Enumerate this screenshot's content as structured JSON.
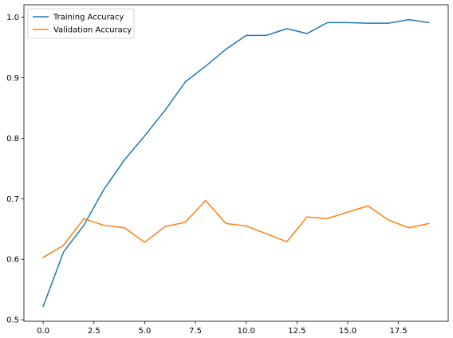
{
  "chart_data": {
    "type": "line",
    "title": "",
    "xlabel": "",
    "ylabel": "",
    "xlim": [
      -0.95,
      19.95
    ],
    "ylim": [
      0.4975,
      1.0205
    ],
    "xticks": [
      0.0,
      2.5,
      5.0,
      7.5,
      10.0,
      12.5,
      15.0,
      17.5
    ],
    "xtick_labels": [
      "0.0",
      "2.5",
      "5.0",
      "7.5",
      "10.0",
      "12.5",
      "15.0",
      "17.5"
    ],
    "yticks": [
      0.5,
      0.6,
      0.7,
      0.8,
      0.9,
      1.0
    ],
    "ytick_labels": [
      "0.5",
      "0.6",
      "0.7",
      "0.8",
      "0.9",
      "1.0"
    ],
    "grid": false,
    "legend_position": "top-left",
    "x": [
      0,
      1,
      2,
      3,
      4,
      5,
      6,
      7,
      8,
      9,
      10,
      11,
      12,
      13,
      14,
      15,
      16,
      17,
      18,
      19
    ],
    "series": [
      {
        "name": "Training Accuracy",
        "color": "#1f77b4",
        "values": [
          0.522,
          0.612,
          0.656,
          0.716,
          0.764,
          0.804,
          0.846,
          0.893,
          0.919,
          0.947,
          0.97,
          0.97,
          0.981,
          0.973,
          0.991,
          0.991,
          0.99,
          0.99,
          0.996,
          0.991
        ]
      },
      {
        "name": "Validation Accuracy",
        "color": "#ff7f0e",
        "values": [
          0.603,
          0.623,
          0.667,
          0.656,
          0.652,
          0.628,
          0.654,
          0.661,
          0.697,
          0.659,
          0.655,
          0.642,
          0.629,
          0.67,
          0.667,
          0.678,
          0.688,
          0.665,
          0.652,
          0.659
        ]
      }
    ]
  }
}
